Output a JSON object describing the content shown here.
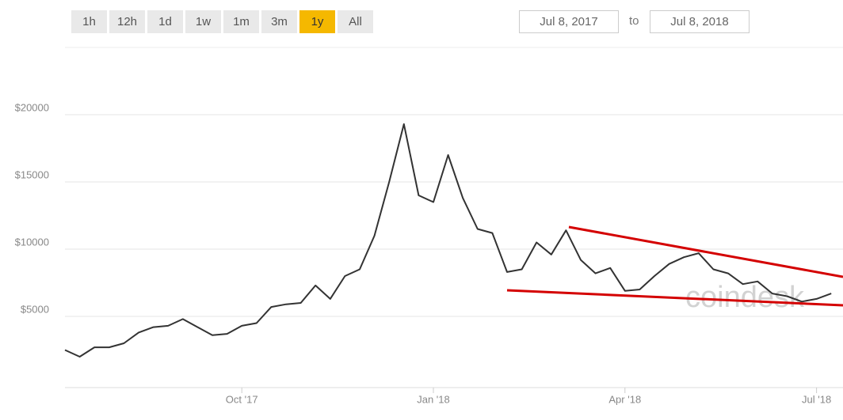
{
  "range_buttons": [
    "1h",
    "12h",
    "1d",
    "1w",
    "1m",
    "3m",
    "1y",
    "All"
  ],
  "active_range": 6,
  "date_range": {
    "from": "Jul 8, 2017",
    "separator": "to",
    "to": "Jul 8, 2018"
  },
  "chart_data": {
    "type": "line",
    "color": "#333333",
    "watermark": "coindesk",
    "categories": [
      null,
      null,
      null,
      null,
      null,
      null,
      null,
      null,
      null,
      null,
      null,
      null,
      "Oct '17",
      null,
      null,
      null,
      null,
      null,
      null,
      null,
      null,
      null,
      null,
      null,
      null,
      "Jan '18",
      null,
      null,
      null,
      null,
      null,
      null,
      null,
      null,
      null,
      null,
      null,
      null,
      "Apr '18",
      null,
      null,
      null,
      null,
      null,
      null,
      null,
      null,
      null,
      null,
      null,
      null,
      "Jul '18",
      null
    ],
    "values": [
      2500,
      2000,
      2700,
      2700,
      3000,
      3800,
      4200,
      4300,
      4800,
      4200,
      3600,
      3700,
      4300,
      4500,
      5700,
      5900,
      6000,
      7300,
      6300,
      8000,
      8500,
      11000,
      15000,
      19300,
      14000,
      13500,
      17000,
      13800,
      11500,
      11200,
      8300,
      8500,
      10500,
      9600,
      11400,
      9200,
      8200,
      8600,
      6900,
      7000,
      8000,
      8900,
      9400,
      9700,
      8500,
      8200,
      7400,
      7600,
      6700,
      6500,
      6100,
      6300,
      6700
    ],
    "ylim": [
      0,
      25000
    ],
    "yticks": [
      {
        "value": 5000,
        "label": "$5000"
      },
      {
        "value": 10000,
        "label": "$10000"
      },
      {
        "value": 15000,
        "label": "$15000"
      },
      {
        "value": 20000,
        "label": "$20000"
      }
    ],
    "grid": true
  }
}
